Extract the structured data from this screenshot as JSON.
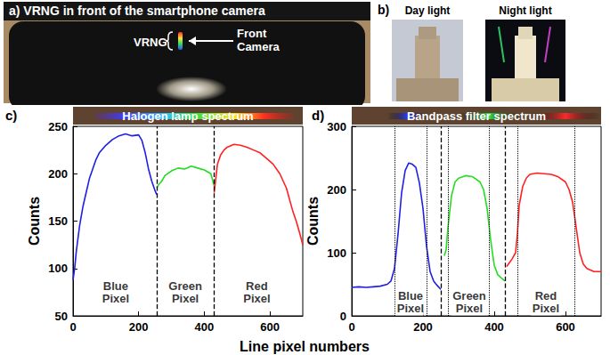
{
  "panels": {
    "a": {
      "label": "a)",
      "title": "VRNG in front of the smartphone camera",
      "callouts": [
        "VRNG",
        "Front Camera"
      ]
    },
    "b": {
      "label": "b)",
      "images": [
        "Day light",
        "Night light"
      ]
    }
  },
  "x_axis_title": "Line pixel numbers",
  "chart_data": [
    {
      "label": "c)",
      "type": "line",
      "title": "Halogen lamp spectrum",
      "ylabel": "Counts",
      "xlim": [
        0,
        700
      ],
      "xticks": [
        0,
        200,
        400,
        600
      ],
      "ylim": [
        50,
        250
      ],
      "yticks": [
        50,
        100,
        150,
        200,
        250
      ],
      "grid": false,
      "series": [
        {
          "color": "#1f1fe6",
          "x": [
            0,
            5,
            10,
            20,
            30,
            40,
            50,
            60,
            70,
            80,
            100,
            120,
            140,
            160,
            180,
            200,
            210,
            220,
            230,
            240,
            250,
            255
          ],
          "values": [
            88,
            100,
            118,
            145,
            165,
            180,
            195,
            205,
            215,
            222,
            230,
            236,
            240,
            242,
            240,
            241,
            235,
            222,
            205,
            192,
            182,
            178
          ]
        },
        {
          "color": "#22dd22",
          "x": [
            255,
            260,
            270,
            280,
            300,
            320,
            340,
            360,
            380,
            400,
            420,
            430
          ],
          "values": [
            185,
            188,
            192,
            198,
            203,
            206,
            205,
            208,
            206,
            204,
            200,
            187
          ]
        },
        {
          "color": "#ff2020",
          "x": [
            430,
            435,
            440,
            450,
            460,
            470,
            490,
            510,
            530,
            550,
            570,
            590,
            610,
            630,
            650,
            670,
            680,
            690,
            700
          ],
          "values": [
            180,
            195,
            210,
            220,
            225,
            228,
            231,
            230,
            228,
            225,
            222,
            216,
            210,
            200,
            185,
            160,
            150,
            138,
            125
          ]
        }
      ],
      "vlines": [
        {
          "x": 255,
          "line_style": "dashed"
        },
        {
          "x": 430,
          "line_style": "dashed"
        }
      ],
      "annotations": [
        {
          "text": "Blue Pixel",
          "x": 130,
          "y": 75
        },
        {
          "text": "Green Pixel",
          "x": 342,
          "y": 75
        },
        {
          "text": "Red Pixel",
          "x": 560,
          "y": 75
        }
      ]
    },
    {
      "label": "d)",
      "type": "line",
      "title": "Bandpass filter spectrum",
      "ylabel": "Counts",
      "xlim": [
        0,
        700
      ],
      "xticks": [
        0,
        200,
        400,
        600
      ],
      "ylim": [
        0,
        300
      ],
      "yticks": [
        0,
        100,
        200,
        300
      ],
      "grid": false,
      "series": [
        {
          "color": "#1f1fe6",
          "x": [
            0,
            20,
            40,
            60,
            80,
            100,
            110,
            120,
            130,
            140,
            150,
            160,
            170,
            180,
            190,
            200,
            210,
            220,
            230,
            240,
            250
          ],
          "values": [
            45,
            46,
            45,
            46,
            47,
            50,
            55,
            75,
            130,
            195,
            230,
            242,
            240,
            235,
            210,
            170,
            110,
            70,
            55,
            48,
            42
          ]
        },
        {
          "color": "#22dd22",
          "x": [
            260,
            265,
            270,
            280,
            290,
            300,
            320,
            340,
            360,
            370,
            380,
            390,
            400,
            410,
            420,
            430
          ],
          "values": [
            95,
            105,
            140,
            190,
            212,
            218,
            222,
            220,
            212,
            200,
            170,
            120,
            80,
            65,
            60,
            55
          ]
        },
        {
          "color": "#ff2020",
          "x": [
            435,
            440,
            450,
            460,
            465,
            470,
            480,
            490,
            500,
            520,
            540,
            560,
            580,
            600,
            610,
            620,
            630,
            640,
            650,
            660,
            680,
            700
          ],
          "values": [
            78,
            82,
            90,
            100,
            130,
            175,
            205,
            218,
            224,
            226,
            225,
            224,
            220,
            212,
            200,
            180,
            140,
            100,
            82,
            75,
            70,
            70
          ]
        }
      ],
      "vlines": [
        {
          "x": 120,
          "line_style": "dotted"
        },
        {
          "x": 210,
          "line_style": "dotted"
        },
        {
          "x": 250,
          "line_style": "dashed"
        },
        {
          "x": 270,
          "line_style": "dotted"
        },
        {
          "x": 385,
          "line_style": "dotted"
        },
        {
          "x": 430,
          "line_style": "dashed"
        },
        {
          "x": 465,
          "line_style": "dotted"
        },
        {
          "x": 625,
          "line_style": "dotted"
        }
      ],
      "annotations": [
        {
          "text": "Blue Pixel",
          "x": 165,
          "y": 22
        },
        {
          "text": "Green Pixel",
          "x": 330,
          "y": 22
        },
        {
          "text": "Red Pixel",
          "x": 545,
          "y": 22
        }
      ]
    }
  ]
}
